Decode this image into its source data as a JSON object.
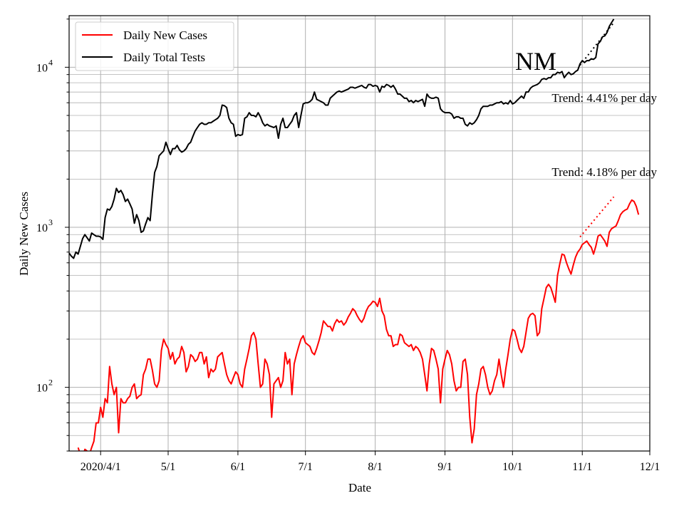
{
  "chart_data": {
    "type": "line",
    "state_label": "NM",
    "xlabel": "Date",
    "ylabel": "Daily New Cases",
    "y_scale": "log",
    "ylim": [
      40,
      21000
    ],
    "x_range": [
      "2020-03-18",
      "2020-12-01"
    ],
    "grid": "on",
    "legend_position": "top-left",
    "x_ticks": [
      {
        "date": "2020-04-01",
        "label": "2020/4/1"
      },
      {
        "date": "2020-05-01",
        "label": "5/1"
      },
      {
        "date": "2020-06-01",
        "label": "6/1"
      },
      {
        "date": "2020-07-01",
        "label": "7/1"
      },
      {
        "date": "2020-08-01",
        "label": "8/1"
      },
      {
        "date": "2020-09-01",
        "label": "9/1"
      },
      {
        "date": "2020-10-01",
        "label": "10/1"
      },
      {
        "date": "2020-11-01",
        "label": "11/1"
      },
      {
        "date": "2020-12-01",
        "label": "12/1"
      }
    ],
    "y_ticks": [
      {
        "value": 100,
        "base": "10",
        "exp": "2"
      },
      {
        "value": 1000,
        "base": "10",
        "exp": "3"
      },
      {
        "value": 10000,
        "base": "10",
        "exp": "4"
      }
    ],
    "trend_annotations": [
      {
        "text": "Trend: 4.41% per day",
        "series": "Daily Total Tests"
      },
      {
        "text": "Trend: 4.18% per day",
        "series": "Daily New Cases"
      }
    ],
    "series": [
      {
        "name": "Daily Total Tests",
        "color": "#000000",
        "start_date": "2020-03-18",
        "values": [
          690,
          660,
          640,
          700,
          680,
          760,
          850,
          900,
          860,
          820,
          920,
          900,
          880,
          880,
          870,
          840,
          1150,
          1300,
          1280,
          1350,
          1500,
          1750,
          1650,
          1700,
          1600,
          1450,
          1500,
          1400,
          1300,
          1060,
          1200,
          1100,
          930,
          950,
          1050,
          1150,
          1100,
          1600,
          2200,
          2400,
          2800,
          2900,
          3000,
          3400,
          3100,
          2850,
          3100,
          3100,
          3250,
          3050,
          2950,
          3000,
          3100,
          3300,
          3400,
          3700,
          4000,
          4200,
          4400,
          4500,
          4400,
          4400,
          4500,
          4500,
          4600,
          4700,
          4800,
          5000,
          5800,
          5750,
          5600,
          4800,
          4500,
          4400,
          3700,
          3800,
          3750,
          3800,
          4800,
          4900,
          5200,
          5000,
          5000,
          4900,
          5200,
          4900,
          4500,
          4300,
          4400,
          4300,
          4250,
          4200,
          4300,
          3600,
          4400,
          4800,
          4200,
          4200,
          4400,
          4600,
          5000,
          5200,
          4200,
          5000,
          5900,
          6000,
          6000,
          6100,
          6300,
          7000,
          6300,
          6200,
          6100,
          6000,
          5800,
          5800,
          6400,
          6600,
          6800,
          7000,
          7100,
          7000,
          7100,
          7200,
          7300,
          7500,
          7500,
          7400,
          7500,
          7600,
          7700,
          7500,
          7400,
          7800,
          7800,
          7600,
          7700,
          7600,
          7000,
          7600,
          7500,
          7800,
          7700,
          7500,
          7700,
          7300,
          6800,
          6800,
          6600,
          6400,
          6400,
          6100,
          6200,
          6000,
          6200,
          6100,
          6200,
          6300,
          5700,
          6800,
          6500,
          6400,
          6400,
          6500,
          6400,
          5500,
          5300,
          5200,
          5200,
          5200,
          5100,
          4800,
          4900,
          4900,
          4800,
          4800,
          4400,
          4300,
          4500,
          4400,
          4500,
          4700,
          5000,
          5500,
          5700,
          5700,
          5700,
          5800,
          5800,
          5900,
          6000,
          6000,
          6100,
          5900,
          6000,
          5900,
          6200,
          5900,
          6000,
          6200,
          6400,
          6600,
          6400,
          7000,
          7000,
          7400,
          7600,
          7700,
          7800,
          8000,
          8400,
          8500,
          8400,
          8600,
          8600,
          9000,
          9000,
          9300,
          9200,
          9400,
          8600,
          9000,
          9300,
          9000,
          9100,
          9400,
          9600,
          10500,
          11000,
          10700,
          11000,
          11000,
          11300,
          11200,
          11500,
          14000,
          14500,
          15500,
          15700,
          16500,
          18000,
          19000,
          20000
        ]
      },
      {
        "name": "Daily New Cases",
        "color": "#ff0000",
        "start_date": "2020-03-22",
        "values": [
          42,
          38,
          36,
          41,
          40,
          38,
          42,
          46,
          60,
          60,
          75,
          65,
          85,
          80,
          135,
          105,
          90,
          100,
          52,
          85,
          80,
          80,
          85,
          88,
          100,
          105,
          85,
          88,
          90,
          120,
          130,
          150,
          150,
          128,
          105,
          100,
          110,
          170,
          200,
          185,
          175,
          150,
          165,
          140,
          150,
          155,
          180,
          165,
          125,
          135,
          160,
          155,
          145,
          150,
          165,
          165,
          140,
          155,
          115,
          130,
          125,
          130,
          155,
          160,
          165,
          140,
          120,
          110,
          105,
          115,
          125,
          120,
          105,
          100,
          130,
          150,
          175,
          210,
          220,
          200,
          140,
          100,
          105,
          150,
          140,
          120,
          65,
          105,
          110,
          115,
          100,
          110,
          165,
          140,
          150,
          90,
          140,
          160,
          180,
          200,
          210,
          190,
          185,
          180,
          165,
          160,
          175,
          195,
          220,
          260,
          250,
          240,
          240,
          225,
          250,
          265,
          255,
          260,
          245,
          255,
          275,
          290,
          310,
          300,
          280,
          265,
          255,
          270,
          300,
          320,
          330,
          345,
          340,
          320,
          360,
          300,
          280,
          230,
          210,
          210,
          180,
          185,
          185,
          215,
          210,
          190,
          185,
          180,
          185,
          170,
          180,
          175,
          165,
          150,
          120,
          95,
          140,
          175,
          170,
          150,
          130,
          80,
          130,
          150,
          170,
          160,
          140,
          110,
          95,
          100,
          100,
          145,
          150,
          120,
          65,
          45,
          55,
          90,
          105,
          130,
          135,
          120,
          100,
          90,
          95,
          110,
          120,
          150,
          120,
          100,
          130,
          160,
          200,
          230,
          225,
          200,
          175,
          165,
          180,
          220,
          270,
          285,
          290,
          280,
          210,
          220,
          310,
          360,
          420,
          440,
          420,
          380,
          340,
          500,
          590,
          680,
          670,
          600,
          550,
          510,
          580,
          650,
          700,
          730,
          780,
          800,
          820,
          780,
          750,
          680,
          760,
          880,
          900,
          860,
          820,
          760,
          930,
          980,
          1000,
          1020,
          1100,
          1200,
          1250,
          1280,
          1300,
          1400,
          1480,
          1450,
          1350,
          1200
        ]
      }
    ],
    "trend_lines": [
      {
        "series": "Daily Total Tests",
        "points": [
          {
            "date": "2020-10-31",
            "value": 10300
          },
          {
            "date": "2020-11-15",
            "value": 19000
          }
        ]
      },
      {
        "series": "Daily New Cases",
        "points": [
          {
            "date": "2020-10-31",
            "value": 870
          },
          {
            "date": "2020-11-15",
            "value": 1550
          }
        ]
      }
    ]
  }
}
